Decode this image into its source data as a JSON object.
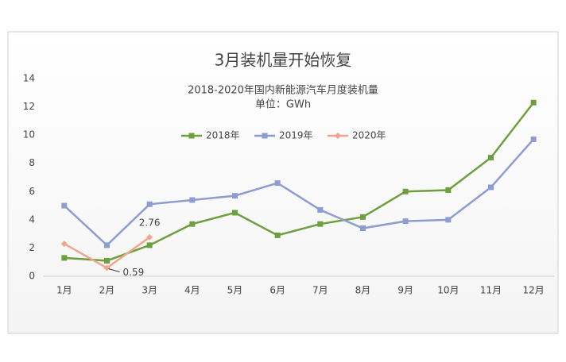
{
  "chart_data": {
    "type": "line",
    "title": "3月装机量开始恢复",
    "subtitle": "2018-2020年国内新能源汽车月度装机量",
    "unit_label": "单位：GWh",
    "categories": [
      "1月",
      "2月",
      "3月",
      "4月",
      "5月",
      "6月",
      "7月",
      "8月",
      "9月",
      "10月",
      "11月",
      "12月"
    ],
    "series": [
      {
        "name": "2018年",
        "color": "#6e9f3e",
        "marker": "square",
        "values": [
          1.3,
          1.1,
          2.2,
          3.7,
          4.5,
          2.9,
          3.7,
          4.2,
          6.0,
          6.1,
          8.4,
          12.3
        ]
      },
      {
        "name": "2019年",
        "color": "#8d9dd1",
        "marker": "square",
        "values": [
          5.0,
          2.2,
          5.1,
          5.4,
          5.7,
          6.6,
          4.7,
          3.4,
          3.9,
          4.0,
          6.3,
          9.7
        ]
      },
      {
        "name": "2020年",
        "color": "#f0a58c",
        "marker": "diamond",
        "values": [
          2.3,
          0.59,
          2.76,
          null,
          null,
          null,
          null,
          null,
          null,
          null,
          null,
          null
        ],
        "value_labels": [
          null,
          "0.59",
          "2.76",
          null,
          null,
          null,
          null,
          null,
          null,
          null,
          null,
          null
        ]
      }
    ],
    "ylim": [
      0,
      14
    ],
    "yticks": [
      0,
      2,
      4,
      6,
      8,
      10,
      12,
      14
    ],
    "grid": false,
    "legend": "top"
  }
}
